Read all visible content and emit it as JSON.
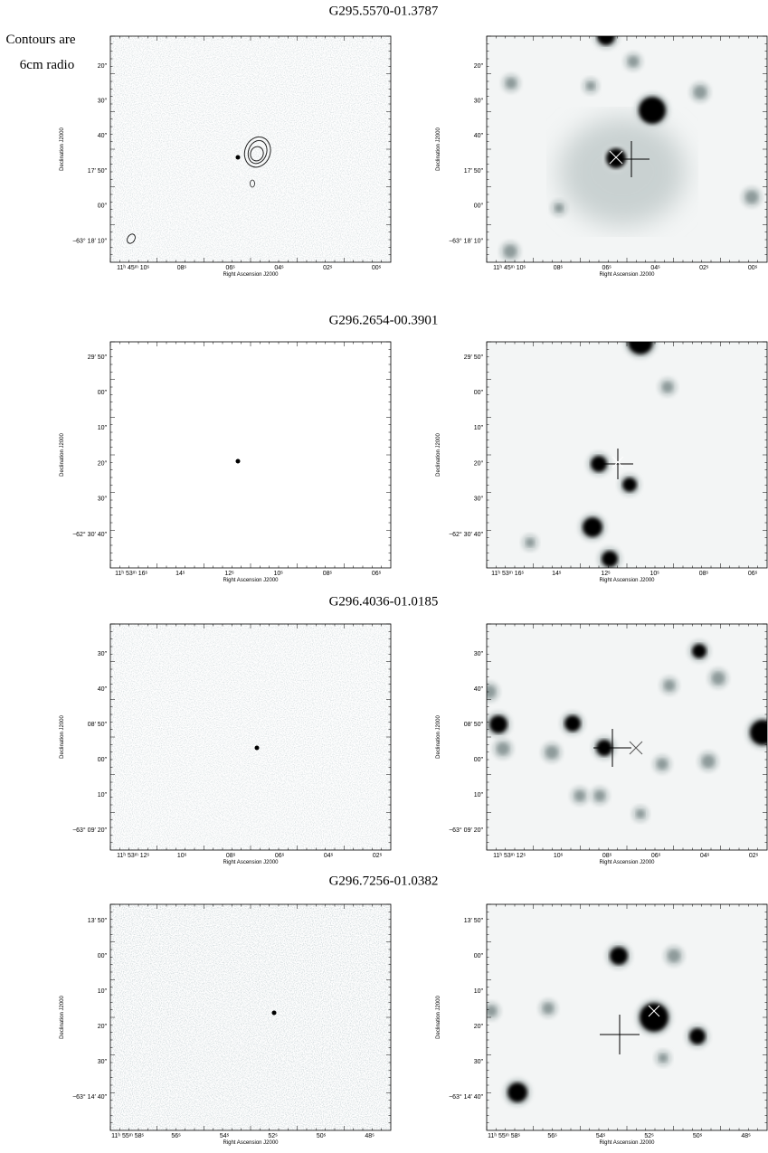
{
  "note": [
    "Contours are",
    "6cm radio"
  ],
  "rows": [
    {
      "title": "G295.5570-01.3787",
      "ylabel": "Declination J2000",
      "xlabel": "Right Ascension J2000",
      "yticks": [
        "20″",
        "30″",
        "40″",
        "17′ 50″",
        "00″",
        "−63° 18′ 10″"
      ],
      "xticks": [
        "11ʰ 45ᵐ 10ˢ",
        "08ˢ",
        "06ˢ",
        "04ˢ",
        "02ˢ",
        "00ˢ"
      ]
    },
    {
      "title": "G296.2654-00.3901",
      "ylabel": "Declination J2000",
      "xlabel": "Right Ascension J2000",
      "yticks": [
        "29′ 50″",
        "00″",
        "10″",
        "20″",
        "30″",
        "−62° 30′ 40″"
      ],
      "xticks": [
        "11ʰ 53ᵐ 16ˢ",
        "14ˢ",
        "12ˢ",
        "10ˢ",
        "08ˢ",
        "06ˢ"
      ]
    },
    {
      "title": "G296.4036-01.0185",
      "ylabel": "Declination J2000",
      "xlabel": "Right Ascension J2000",
      "yticks": [
        "30″",
        "40″",
        "08′ 50″",
        "00″",
        "10″",
        "−63° 09′ 20″"
      ],
      "xticks": [
        "11ʰ 53ᵐ 12ˢ",
        "10ˢ",
        "08ˢ",
        "06ˢ",
        "04ˢ",
        "02ˢ"
      ]
    },
    {
      "title": "G296.7256-01.0382",
      "ylabel": "Declination J2000",
      "xlabel": "Right Ascension J2000",
      "yticks": [
        "13′ 50″",
        "00″",
        "10″",
        "20″",
        "30″",
        "−63° 14′ 40″"
      ],
      "xticks": [
        "11ʰ 55ᵐ 58ˢ",
        "56ˢ",
        "54ˢ",
        "52ˢ",
        "50ˢ",
        "48ˢ"
      ]
    }
  ]
}
